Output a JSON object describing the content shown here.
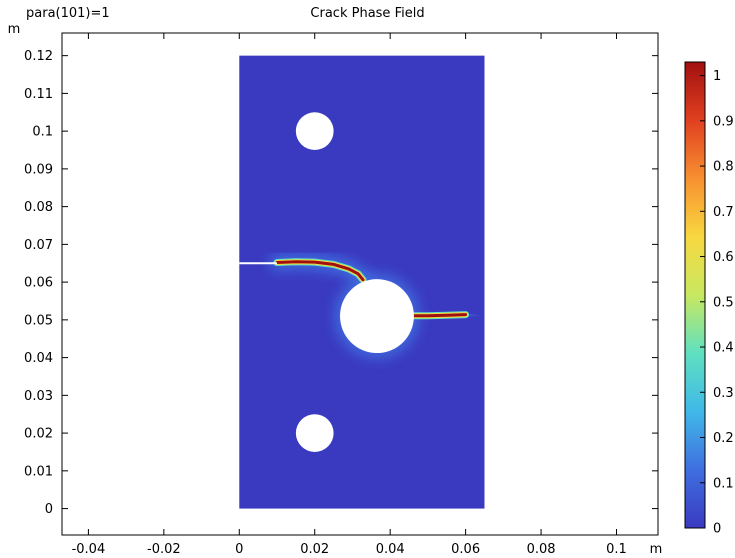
{
  "header": {
    "parameter_label": "para(101)=1",
    "title": "Crack Phase Field"
  },
  "chart_data": {
    "type": "heatmap",
    "title": "Crack Phase Field",
    "xlabel": "m",
    "ylabel": "m",
    "xlim": [
      -0.047,
      0.111
    ],
    "ylim": [
      -0.007,
      0.126
    ],
    "x_ticks": [
      -0.04,
      -0.02,
      0,
      0.02,
      0.04,
      0.06,
      0.08,
      0.1
    ],
    "x_tick_labels": [
      "-0.04",
      "-0.02",
      "0",
      "0.02",
      "0.04",
      "0.06",
      "0.08",
      "0.1"
    ],
    "y_ticks": [
      0,
      0.01,
      0.02,
      0.03,
      0.04,
      0.05,
      0.06,
      0.07,
      0.08,
      0.09,
      0.1,
      0.11,
      0.12
    ],
    "y_tick_labels": [
      "0",
      "0.01",
      "0.02",
      "0.03",
      "0.04",
      "0.05",
      "0.06",
      "0.07",
      "0.08",
      "0.09",
      "0.1",
      "0.11",
      "0.12"
    ],
    "domain": {
      "x": [
        0,
        0.065
      ],
      "y": [
        0,
        0.12
      ]
    },
    "holes": [
      {
        "cx": 0.02,
        "cy": 0.1,
        "r": 0.005
      },
      {
        "cx": 0.02,
        "cy": 0.02,
        "r": 0.005
      },
      {
        "cx": 0.0365,
        "cy": 0.051,
        "r": 0.0098
      }
    ],
    "initial_notch": {
      "x": [
        0,
        0.01
      ],
      "y": 0.065
    },
    "crack_paths": [
      {
        "points": [
          [
            0.01,
            0.0652
          ],
          [
            0.015,
            0.0654
          ],
          [
            0.02,
            0.0653
          ],
          [
            0.025,
            0.0647
          ],
          [
            0.029,
            0.0635
          ],
          [
            0.0315,
            0.0622
          ],
          [
            0.0328,
            0.0606
          ]
        ]
      },
      {
        "points": [
          [
            0.046,
            0.0511
          ],
          [
            0.05,
            0.0511
          ],
          [
            0.055,
            0.0512
          ],
          [
            0.06,
            0.0514
          ]
        ]
      }
    ],
    "field_value": {
      "background": 0,
      "crack": 1
    },
    "colorbar": {
      "range": [
        0,
        1.03
      ],
      "ticks": [
        0,
        0.1,
        0.2,
        0.3,
        0.4,
        0.5,
        0.6,
        0.7,
        0.8,
        0.9,
        1
      ],
      "tick_labels": [
        "0",
        "0.1",
        "0.2",
        "0.3",
        "0.4",
        "0.5",
        "0.6",
        "0.7",
        "0.8",
        "0.9",
        "1"
      ],
      "colors": [
        "#3a3ac0",
        "#3f6fe0",
        "#40b8e8",
        "#5fe0c0",
        "#c8e860",
        "#f8d840",
        "#f89030",
        "#e04020",
        "#a01010"
      ]
    }
  }
}
